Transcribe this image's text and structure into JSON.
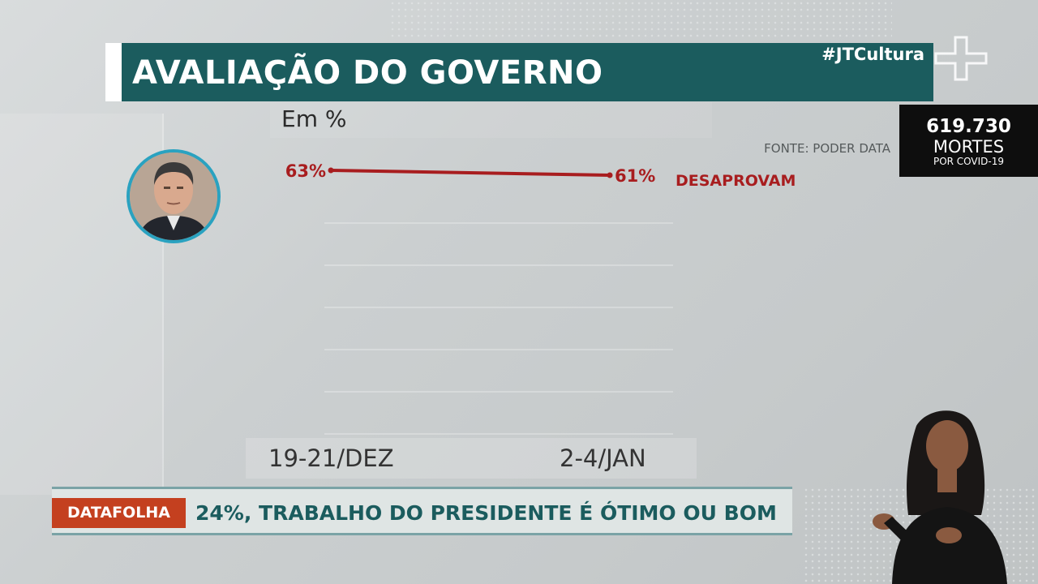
{
  "header": {
    "title": "AVALIAÇÃO DO GOVERNO",
    "hashtag": "#JTCultura"
  },
  "covid_counter": {
    "value": "619.730",
    "label": "MORTES",
    "sublabel": "POR COVID-19"
  },
  "chart_data": {
    "type": "line",
    "subtitle": "Em %",
    "source": "FONTE: PODER DATA",
    "x": [
      "19-21/DEZ",
      "2-4/JAN"
    ],
    "series": [
      {
        "name": "DESAPROVAM",
        "values": [
          63,
          61
        ],
        "value_labels": [
          "63%",
          "61%"
        ],
        "color": "#a81d1f"
      }
    ]
  },
  "ticker": {
    "tag": "DATAFOLHA",
    "text": "24%, TRABALHO DO PRESIDENTE É ÓTIMO OU BOM",
    "tag_color": "#c4401f",
    "text_color": "#1b5c5e"
  },
  "colors": {
    "brand": "#1b5c5e",
    "avatar_ring": "#2aa2c0"
  }
}
